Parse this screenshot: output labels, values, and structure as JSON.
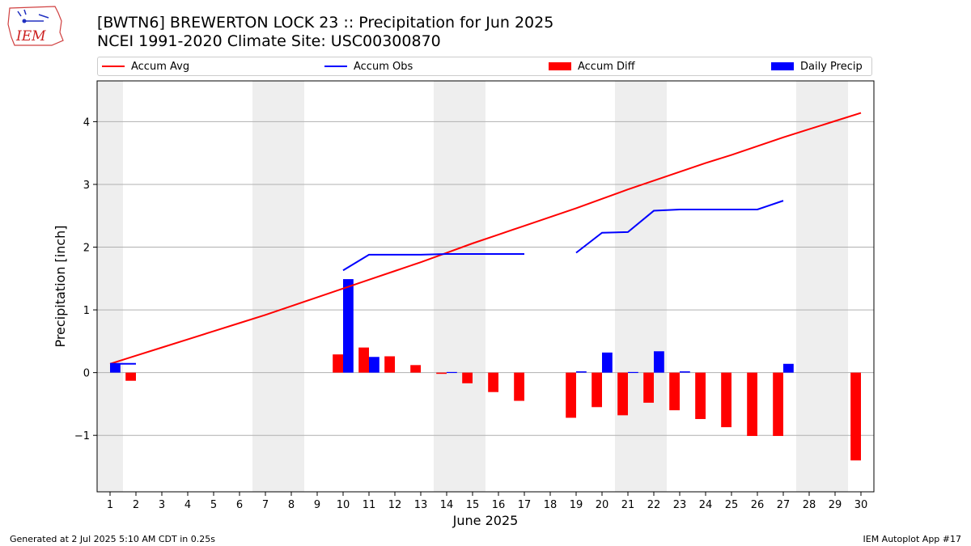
{
  "header": {
    "title_line1": "[BWTN6] BREWERTON LOCK 23 :: Precipitation for Jun 2025",
    "title_line2": "NCEI 1991-2020 Climate Site: USC00300870",
    "logo_text": "IEM"
  },
  "legend": {
    "accum_avg": "Accum Avg",
    "accum_obs": "Accum Obs",
    "accum_diff": "Accum Diff",
    "daily_precip": "Daily Precip"
  },
  "footer": {
    "generated": "Generated at 2 Jul 2025 5:10 AM CDT in 0.25s",
    "app": "IEM Autoplot App #17"
  },
  "colors": {
    "accum_avg": "#ff0000",
    "accum_obs": "#0000ff",
    "accum_diff": "#ff0000",
    "daily_precip": "#0000ff",
    "weekend_shade": "#eeeeee",
    "grid": "#b0b0b0"
  },
  "chart_data": {
    "type": "bar",
    "xlabel": "June 2025",
    "ylabel": "Precipitation [inch]",
    "xlim": [
      0.5,
      30.5
    ],
    "ylim": [
      -1.9,
      4.65
    ],
    "yticks": [
      -1,
      0,
      1,
      2,
      3,
      4
    ],
    "ytick_labels": [
      "−1",
      "0",
      "1",
      "2",
      "3",
      "4"
    ],
    "x": [
      1,
      2,
      3,
      4,
      5,
      6,
      7,
      8,
      9,
      10,
      11,
      12,
      13,
      14,
      15,
      16,
      17,
      18,
      19,
      20,
      21,
      22,
      23,
      24,
      25,
      26,
      27,
      28,
      29,
      30
    ],
    "grid": "horizontal",
    "legend_position": "top",
    "weekend_days": [
      1,
      7,
      8,
      14,
      15,
      21,
      22,
      28,
      29
    ],
    "series": [
      {
        "name": "Accum Avg",
        "kind": "line",
        "values": [
          0.14,
          0.27,
          0.4,
          0.53,
          0.66,
          0.79,
          0.92,
          1.06,
          1.2,
          1.34,
          1.48,
          1.62,
          1.76,
          1.91,
          2.06,
          2.2,
          2.34,
          2.48,
          2.62,
          2.77,
          2.92,
          3.06,
          3.2,
          3.34,
          3.47,
          3.61,
          3.75,
          3.88,
          4.01,
          4.14
        ]
      },
      {
        "name": "Accum Obs",
        "kind": "line",
        "values": [
          0.14,
          0.14,
          null,
          null,
          null,
          null,
          null,
          null,
          null,
          1.63,
          1.88,
          1.88,
          1.88,
          1.89,
          1.89,
          1.89,
          1.89,
          null,
          1.91,
          2.23,
          2.24,
          2.58,
          2.6,
          2.6,
          2.6,
          2.6,
          2.74,
          null,
          null,
          null
        ]
      },
      {
        "name": "Accum Diff",
        "kind": "bar",
        "values": [
          0.0,
          -0.13,
          null,
          null,
          null,
          null,
          null,
          null,
          null,
          0.29,
          0.4,
          0.26,
          0.12,
          -0.02,
          -0.17,
          -0.31,
          -0.45,
          null,
          -0.72,
          -0.55,
          -0.68,
          -0.48,
          -0.6,
          -0.74,
          -0.87,
          -1.01,
          -1.01,
          null,
          null,
          -1.4
        ]
      },
      {
        "name": "Daily Precip",
        "kind": "bar",
        "values": [
          0.14,
          null,
          null,
          null,
          null,
          null,
          null,
          null,
          null,
          1.49,
          0.25,
          null,
          null,
          0.01,
          null,
          null,
          null,
          null,
          0.02,
          0.32,
          0.01,
          0.34,
          0.02,
          null,
          null,
          null,
          0.14,
          null,
          null,
          null
        ]
      }
    ]
  }
}
